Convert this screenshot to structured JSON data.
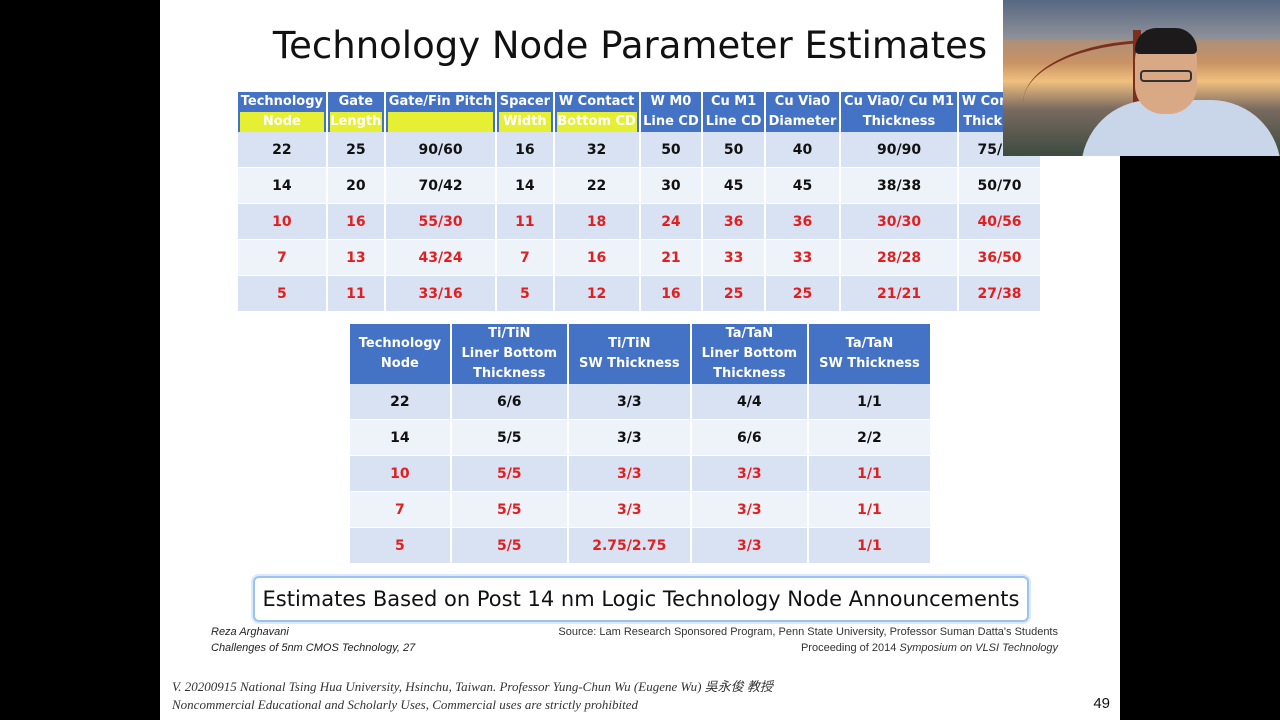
{
  "title": "Technology Node Parameter Estimates",
  "table1": {
    "headers": [
      {
        "line1": "Technology",
        "line2": "Node"
      },
      {
        "line1": "Gate",
        "line2": "Length"
      },
      {
        "line1": "Gate/Fin Pitch",
        "line2": ""
      },
      {
        "line1": "Spacer",
        "line2": "Width"
      },
      {
        "line1": "W Contact",
        "line2": "Bottom CD"
      },
      {
        "line1": "W M0",
        "line2": "Line CD"
      },
      {
        "line1": "Cu M1",
        "line2": "Line CD"
      },
      {
        "line1": "Cu Via0",
        "line2": "Diameter"
      },
      {
        "line1": "Cu Via0/ Cu M1",
        "line2": "Thickness"
      },
      {
        "line1": "W Contact",
        "line2": "Thickness"
      }
    ],
    "rows": [
      [
        "22",
        "25",
        "90/60",
        "16",
        "32",
        "50",
        "50",
        "40",
        "90/90",
        "75/75"
      ],
      [
        "14",
        "20",
        "70/42",
        "14",
        "22",
        "30",
        "45",
        "45",
        "38/38",
        "50/70"
      ],
      [
        "10",
        "16",
        "55/30",
        "11",
        "18",
        "24",
        "36",
        "36",
        "30/30",
        "40/56"
      ],
      [
        "7",
        "13",
        "43/24",
        "7",
        "16",
        "21",
        "33",
        "33",
        "28/28",
        "36/50"
      ],
      [
        "5",
        "11",
        "33/16",
        "5",
        "12",
        "16",
        "25",
        "25",
        "21/21",
        "27/38"
      ]
    ]
  },
  "table2": {
    "headers": [
      [
        "Technology",
        "Node",
        ""
      ],
      [
        "Ti/TiN",
        "Liner Bottom",
        "Thickness"
      ],
      [
        "Ti/TiN",
        "SW Thickness",
        ""
      ],
      [
        "Ta/TaN",
        "Liner Bottom",
        "Thickness"
      ],
      [
        "Ta/TaN",
        "SW Thickness",
        ""
      ]
    ],
    "rows": [
      [
        "22",
        "6/6",
        "3/3",
        "4/4",
        "1/1"
      ],
      [
        "14",
        "5/5",
        "3/3",
        "6/6",
        "2/2"
      ],
      [
        "10",
        "5/5",
        "3/3",
        "3/3",
        "1/1"
      ],
      [
        "7",
        "5/5",
        "3/3",
        "3/3",
        "1/1"
      ],
      [
        "5",
        "5/5",
        "2.75/2.75",
        "3/3",
        "1/1"
      ]
    ]
  },
  "callout": "Estimates Based on Post 14 nm Logic Technology Node Announcements",
  "author": {
    "name": "Reza Arghavani",
    "ref": "Challenges of 5nm CMOS Technology,  27"
  },
  "source": {
    "line1": "Source: Lam Research Sponsored Program, Penn State University, Professor Suman Datta's Students",
    "line2_prefix": "Proceeding of 2014 ",
    "line2_italic": "Symposium on VLSI Technology"
  },
  "footer": {
    "line1": "V. 20200915 National Tsing Hua University, Hsinchu, Taiwan. Professor Yung-Chun Wu (Eugene Wu) 吳永俊 教授",
    "line2": "Noncommercial Educational and Scholarly Uses, Commercial uses are strictly prohibited"
  },
  "page_number": "49",
  "colors": {
    "header_blue": "#4472c4",
    "row_light": "#d9e2f3",
    "row_lighter": "#eef2f9",
    "estimate_red": "#e02020",
    "highlight": "#e6ef34"
  }
}
